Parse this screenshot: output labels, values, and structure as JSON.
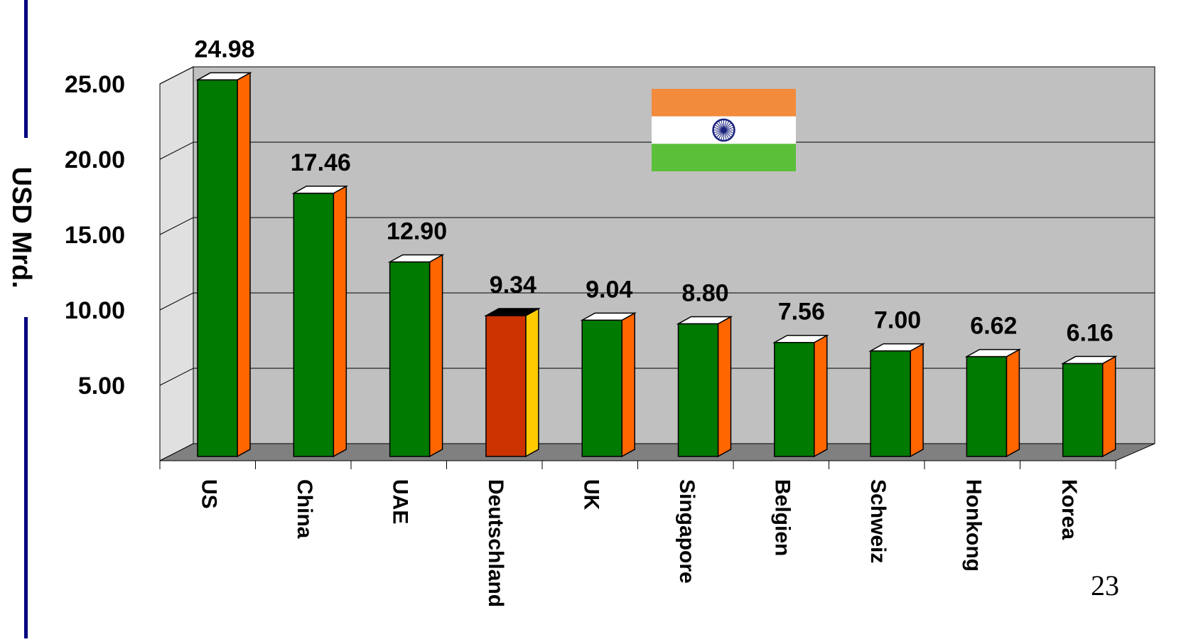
{
  "page_number": "23",
  "colors": {
    "plot_back": "#c0c0c0",
    "floor": "#808080",
    "bar_front": "#007a00",
    "bar_side": "#ff6600",
    "bar_top": "#ffffff",
    "highlight_front": "#cc3300",
    "highlight_side": "#ffcc00",
    "highlight_top": "#000000",
    "axis_line": "#000080"
  },
  "flag": {
    "icon": "india-flag-icon",
    "saffron": "#f28b3b",
    "white": "#ffffff",
    "green": "#5cbf3a",
    "chakra": "#1a237e"
  },
  "chart_data": {
    "type": "bar",
    "title": "",
    "xlabel": "",
    "ylabel": "USD Mrd.",
    "ylim": [
      0,
      25
    ],
    "yticks": [
      5,
      10,
      15,
      20,
      25
    ],
    "ytick_labels": [
      "5.00",
      "10.00",
      "15.00",
      "20.00",
      "25.00"
    ],
    "grid": true,
    "categories": [
      "US",
      "China",
      "UAE",
      "Deutschland",
      "UK",
      "Singapore",
      "Belgien",
      "Schweiz",
      "Honkong",
      "Korea"
    ],
    "values": [
      24.98,
      17.46,
      12.9,
      9.34,
      9.04,
      8.8,
      7.56,
      7.0,
      6.62,
      6.16
    ],
    "value_labels": [
      "24.98",
      "17.46",
      "12.90",
      "9.34",
      "9.04",
      "8.80",
      "7.56",
      "7.00",
      "6.62",
      "6.16"
    ],
    "highlighted_category": "Deutschland"
  }
}
